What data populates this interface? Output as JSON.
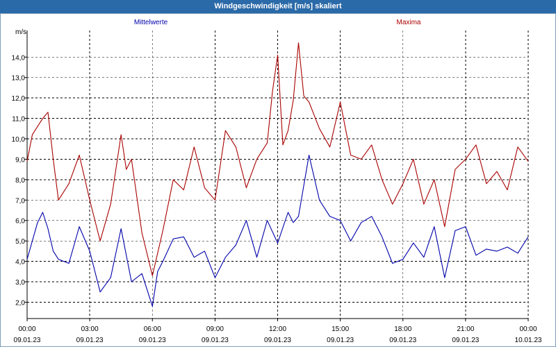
{
  "window": {
    "title": "Windgeschwindigkeit [m/s] skaliert"
  },
  "colors": {
    "titlebar": "#2b6aa8",
    "mean": "#0000aa",
    "max": "#aa0000",
    "grid": "#000000"
  },
  "chart_data": {
    "type": "line",
    "title": "Windgeschwindigkeit [m/s] skaliert",
    "ylabel": "m/s",
    "ylim": [
      1.2,
      15.3
    ],
    "yticks": [
      "2,0",
      "3,0",
      "4,0",
      "5,0",
      "6,0",
      "7,0",
      "8,0",
      "9,0",
      "10,0",
      "11,0",
      "12,0",
      "13,0",
      "14,0"
    ],
    "xlim": [
      0,
      24
    ],
    "xticks": [
      {
        "time": "00:00",
        "date": "09.01.23"
      },
      {
        "time": "03:00",
        "date": "09.01.23"
      },
      {
        "time": "06:00",
        "date": "09.01.23"
      },
      {
        "time": "09:00",
        "date": "09.01.23"
      },
      {
        "time": "12:00",
        "date": "09.01.23"
      },
      {
        "time": "15:00",
        "date": "09.01.23"
      },
      {
        "time": "18:00",
        "date": "09.01.23"
      },
      {
        "time": "21:00",
        "date": "09.01.23"
      },
      {
        "time": "00:00",
        "date": "10.01.23"
      }
    ],
    "grid": true,
    "series": [
      {
        "name": "Mittelwerte",
        "color": "#0000aa",
        "x": [
          0,
          0.5,
          0.75,
          1,
          1.25,
          1.5,
          2,
          2.5,
          3,
          3.5,
          4,
          4.5,
          5,
          5.5,
          6,
          6.25,
          6.5,
          7,
          7.5,
          8,
          8.5,
          9,
          9.5,
          10,
          10.5,
          11,
          11.5,
          12,
          12.5,
          12.75,
          13,
          13.5,
          14,
          14.5,
          15,
          15.5,
          16,
          16.5,
          17,
          17.5,
          18,
          18.5,
          19,
          19.5,
          20,
          20.5,
          21,
          21.5,
          22,
          22.5,
          23,
          23.5,
          24
        ],
        "y": [
          4.1,
          5.9,
          6.4,
          5.6,
          4.5,
          4.1,
          3.9,
          5.7,
          4.5,
          2.5,
          3.2,
          5.6,
          3.0,
          3.4,
          1.8,
          3.5,
          4.0,
          5.1,
          5.2,
          4.2,
          4.5,
          3.2,
          4.2,
          4.8,
          6.0,
          4.2,
          6.0,
          4.9,
          6.4,
          5.9,
          6.2,
          9.2,
          7.0,
          6.2,
          6.0,
          5.0,
          5.9,
          6.2,
          5.2,
          3.9,
          4.1,
          4.9,
          4.2,
          5.7,
          3.2,
          5.5,
          5.7,
          4.3,
          4.6,
          4.5,
          4.7,
          4.4,
          5.2
        ]
      },
      {
        "name": "Maxima",
        "color": "#aa0000",
        "x": [
          0,
          0.25,
          0.5,
          0.75,
          1,
          1.25,
          1.5,
          2,
          2.5,
          3,
          3.25,
          3.5,
          4,
          4.5,
          4.75,
          5,
          5.5,
          6,
          6.5,
          7,
          7.5,
          8,
          8.5,
          9,
          9.5,
          10,
          10.5,
          11,
          11.5,
          11.75,
          12,
          12.25,
          12.5,
          12.75,
          13,
          13.25,
          13.5,
          14,
          14.5,
          15,
          15.5,
          16,
          16.5,
          17,
          17.5,
          18,
          18.5,
          19,
          19.5,
          20,
          20.5,
          21,
          21.5,
          22,
          22.5,
          23,
          23.5,
          24
        ],
        "y": [
          8.9,
          10.2,
          10.6,
          11.0,
          11.3,
          9.0,
          7.0,
          7.8,
          9.2,
          7.0,
          6.0,
          5.0,
          6.8,
          10.2,
          8.5,
          9.0,
          5.4,
          3.3,
          5.5,
          8.0,
          7.5,
          9.6,
          7.6,
          7.0,
          10.4,
          9.6,
          7.6,
          9.0,
          9.8,
          12.3,
          14.1,
          9.7,
          10.4,
          11.9,
          14.7,
          12.1,
          11.8,
          10.5,
          9.6,
          11.8,
          9.2,
          9.0,
          9.7,
          8.0,
          6.8,
          7.8,
          9.0,
          6.8,
          8.0,
          5.7,
          8.5,
          9.0,
          9.7,
          7.8,
          8.4,
          7.5,
          9.6,
          8.9
        ]
      }
    ]
  }
}
